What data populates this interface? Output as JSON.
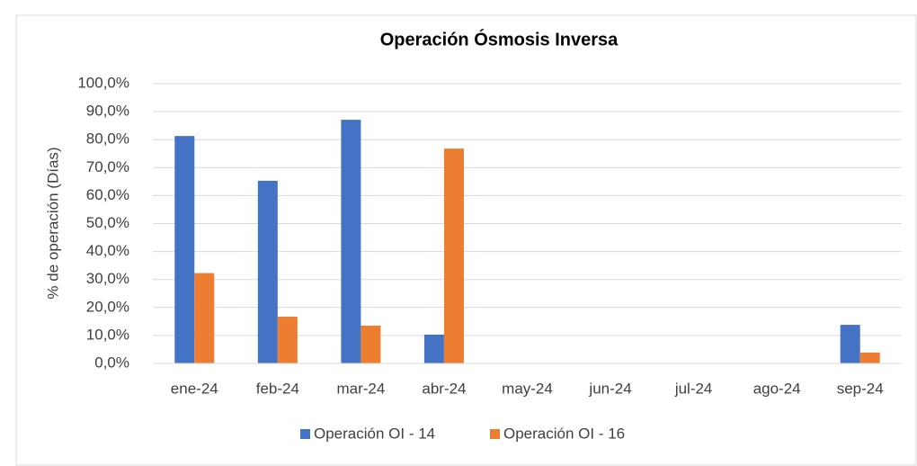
{
  "chart_data": {
    "type": "bar",
    "title": "Operación Ósmosis Inversa",
    "ylabel": "% de operación (Días)",
    "categories": [
      "ene-24",
      "feb-24",
      "mar-24",
      "abr-24",
      "may-24",
      "jun-24",
      "jul-24",
      "ago-24",
      "sep-24"
    ],
    "series": [
      {
        "name": "Operación OI - 14",
        "color": "#4472c4",
        "values": [
          81.3,
          65.3,
          87.1,
          10.3,
          0,
          0,
          0,
          0,
          13.8
        ]
      },
      {
        "name": "Operación OI - 16",
        "color": "#ed7d31",
        "values": [
          32.3,
          16.7,
          13.5,
          76.8,
          0,
          0,
          0,
          0,
          3.9
        ]
      }
    ],
    "ylim": [
      0,
      100
    ],
    "yticks": [
      {
        "value": 0,
        "label": "0,0%"
      },
      {
        "value": 10,
        "label": "10,0%"
      },
      {
        "value": 20,
        "label": "20,0%"
      },
      {
        "value": 30,
        "label": "30,0%"
      },
      {
        "value": 40,
        "label": "40,0%"
      },
      {
        "value": 50,
        "label": "50,0%"
      },
      {
        "value": 60,
        "label": "60,0%"
      },
      {
        "value": 70,
        "label": "70,0%"
      },
      {
        "value": 80,
        "label": "80,0%"
      },
      {
        "value": 90,
        "label": "90,0%"
      },
      {
        "value": 100,
        "label": "100,0%"
      }
    ],
    "grid": true,
    "legend": "bottom"
  }
}
